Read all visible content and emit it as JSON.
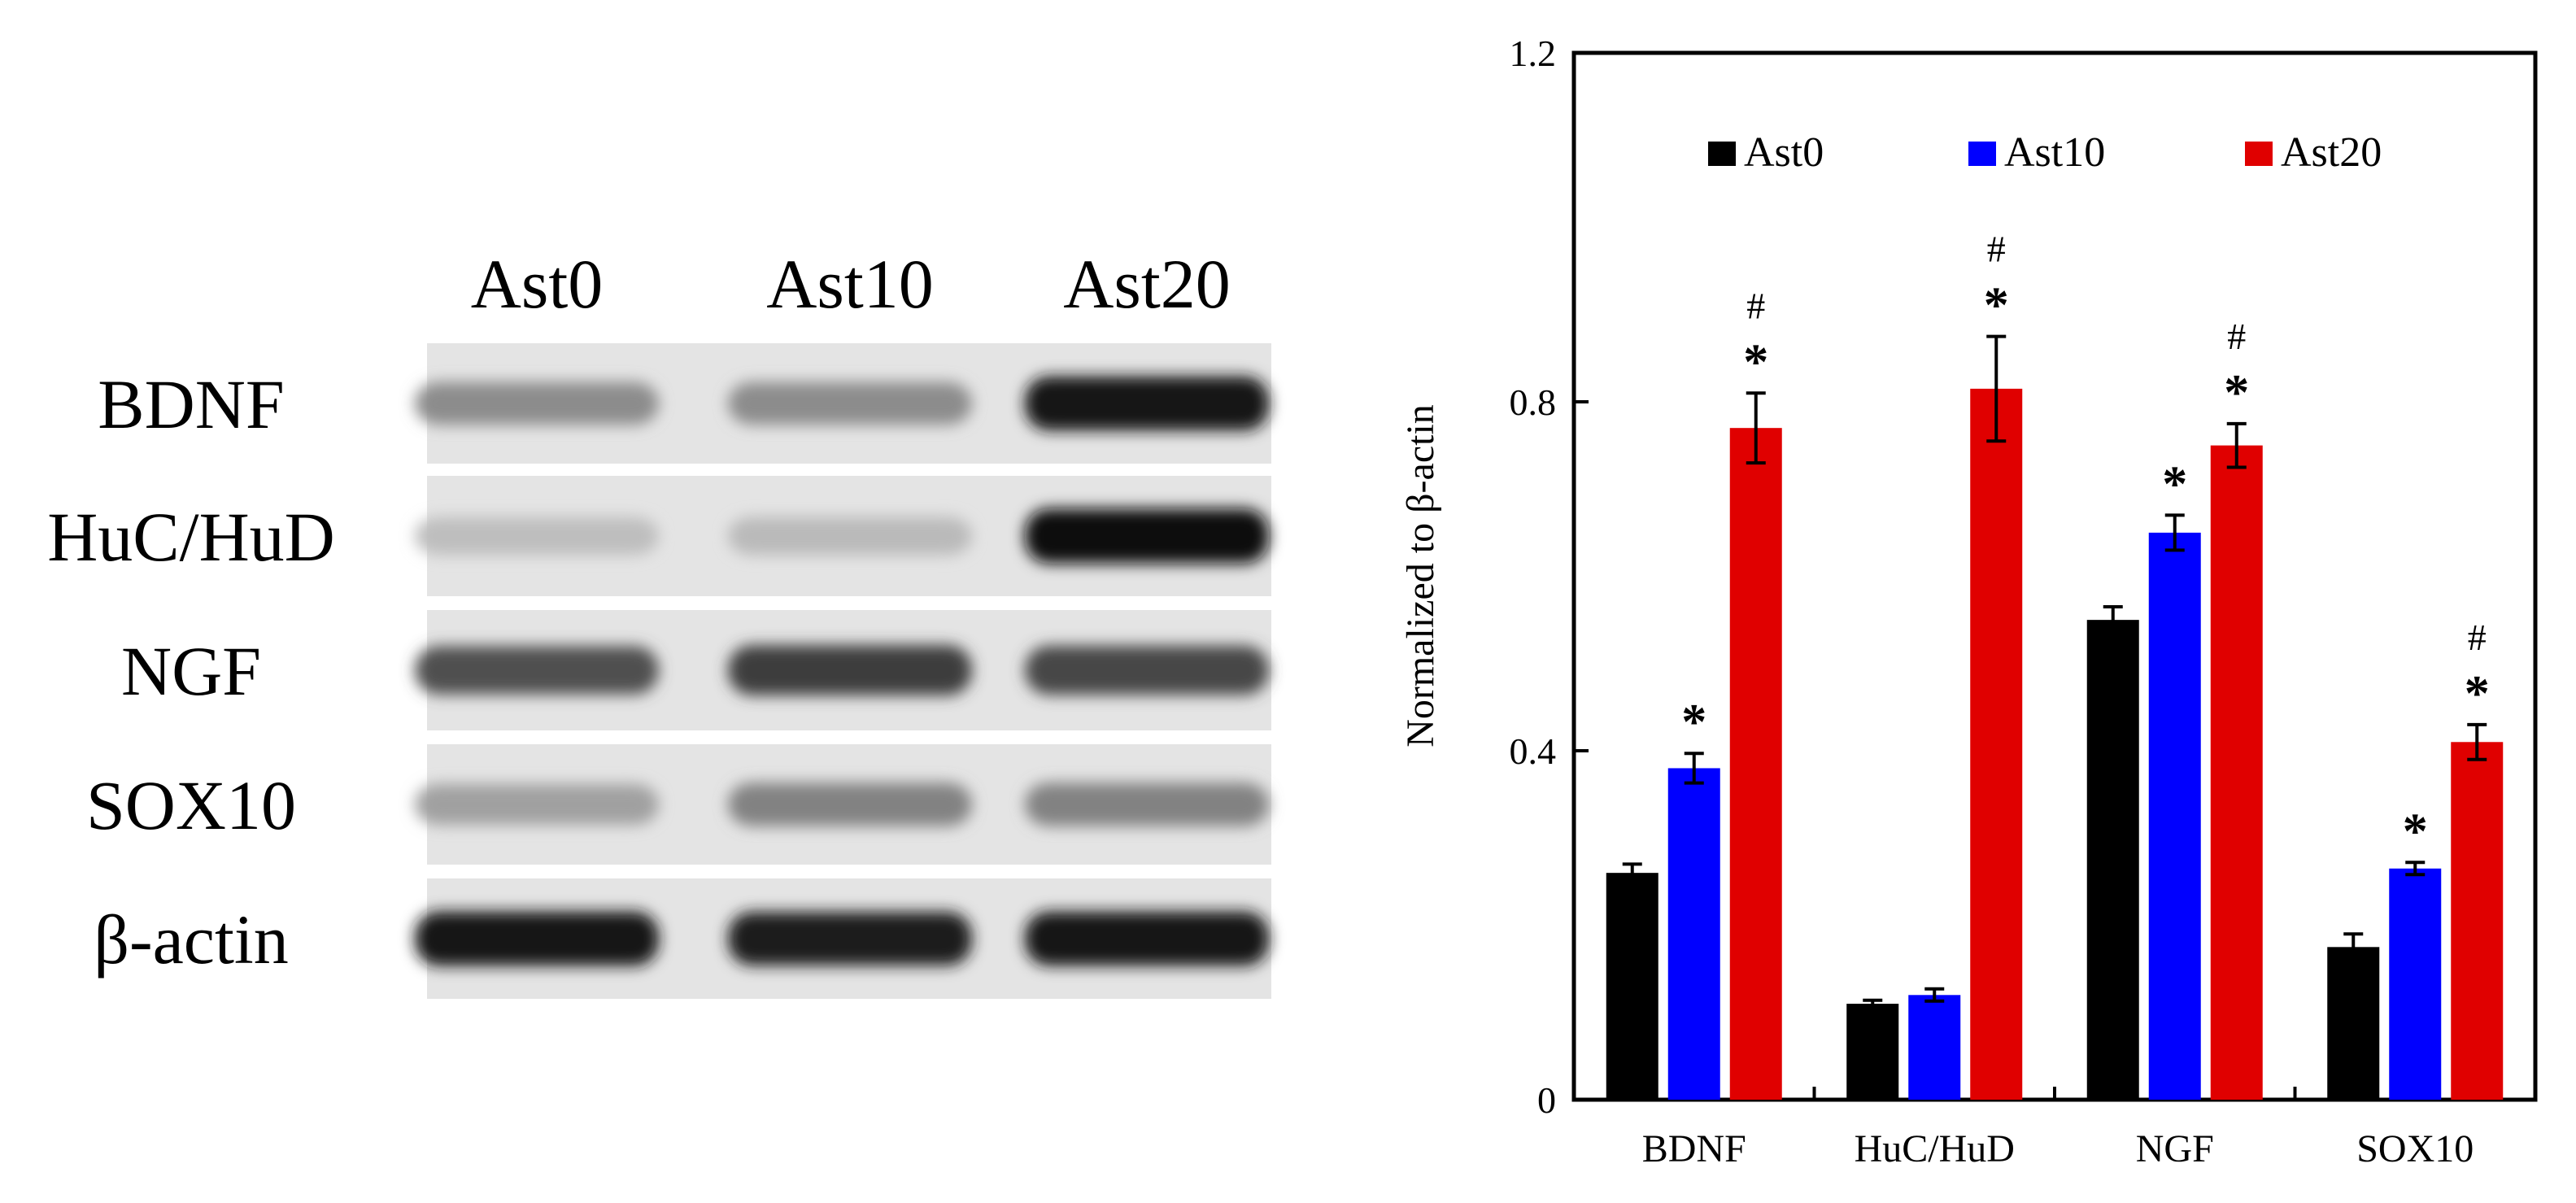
{
  "blot": {
    "lanes": [
      "Ast0",
      "Ast10",
      "Ast20"
    ],
    "rows": [
      {
        "label": "BDNF",
        "intensity": [
          0.35,
          0.35,
          0.95
        ]
      },
      {
        "label": "HuC/HuD",
        "intensity": [
          0.1,
          0.12,
          0.98
        ]
      },
      {
        "label": "NGF",
        "intensity": [
          0.65,
          0.75,
          0.7
        ]
      },
      {
        "label": "SOX10",
        "intensity": [
          0.25,
          0.4,
          0.4
        ]
      },
      {
        "label": "β-actin",
        "intensity": [
          0.95,
          0.92,
          0.95
        ]
      }
    ]
  },
  "chart_data": {
    "type": "bar",
    "categories": [
      "BDNF",
      "HuC/HuD",
      "NGF",
      "SOX10"
    ],
    "series": [
      {
        "name": "Ast0",
        "color": "#000000",
        "values": [
          0.26,
          0.11,
          0.55,
          0.175
        ],
        "errors": [
          0.01,
          0.004,
          0.015,
          0.015
        ],
        "marks": [
          "",
          "",
          "",
          ""
        ]
      },
      {
        "name": "Ast10",
        "color": "#0000ff",
        "values": [
          0.38,
          0.12,
          0.65,
          0.265
        ],
        "errors": [
          0.017,
          0.007,
          0.02,
          0.007
        ],
        "marks": [
          "*",
          "",
          "*",
          "*"
        ]
      },
      {
        "name": "Ast20",
        "color": "#e00000",
        "values": [
          0.77,
          0.815,
          0.75,
          0.41
        ],
        "errors": [
          0.04,
          0.06,
          0.025,
          0.02
        ],
        "marks": [
          "*\n#",
          "*\n#",
          "*\n#",
          "*\n#"
        ]
      }
    ],
    "xlabel": "",
    "ylabel": "Normalized to β-actin",
    "ylim": [
      0,
      1.2
    ],
    "yticks": [
      "0",
      "0.4",
      "0.8",
      "1.2"
    ],
    "legend": "top"
  }
}
